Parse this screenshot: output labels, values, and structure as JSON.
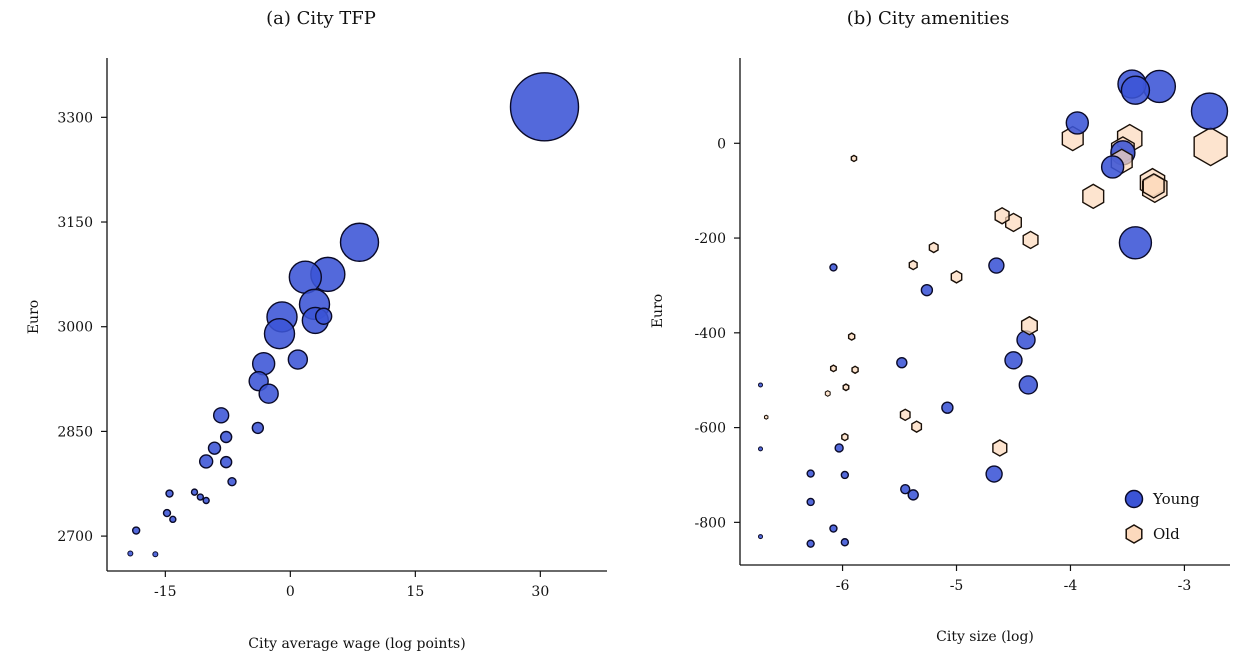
{
  "colors": {
    "young_fill": "#3b54d6",
    "young_stroke": "#0a0a28",
    "old_fill": "#fcd9bd",
    "old_stroke": "#1a1008",
    "axis": "#111111"
  },
  "chart_data": [
    {
      "type": "scatter",
      "title": "(a) City TFP",
      "xlabel": "City average wage (log points)",
      "ylabel": "Euro",
      "xlim": [
        -22,
        38
      ],
      "ylim": [
        2650,
        3385
      ],
      "xticks": [
        -15,
        0,
        15,
        30
      ],
      "xtick_labels": [
        "-15",
        "0",
        "15",
        "30"
      ],
      "yticks": [
        2700,
        2850,
        3000,
        3150,
        3300
      ],
      "ytick_labels": [
        "2700",
        "2850",
        "3000",
        "3150",
        "3300"
      ],
      "grid": false,
      "series": [
        {
          "points": [
            {
              "x": 30.5,
              "y": 3315,
              "size": 34
            },
            {
              "x": 8.3,
              "y": 3121,
              "size": 19
            },
            {
              "x": 4.5,
              "y": 3075,
              "size": 17
            },
            {
              "x": 1.8,
              "y": 3071,
              "size": 16
            },
            {
              "x": -1.0,
              "y": 3014,
              "size": 15
            },
            {
              "x": 2.9,
              "y": 3032,
              "size": 15
            },
            {
              "x": -1.3,
              "y": 2990,
              "size": 15
            },
            {
              "x": 3.0,
              "y": 3009,
              "size": 13
            },
            {
              "x": 4.0,
              "y": 3015,
              "size": 8
            },
            {
              "x": 0.9,
              "y": 2953,
              "size": 9.5
            },
            {
              "x": -3.2,
              "y": 2947,
              "size": 11
            },
            {
              "x": -3.8,
              "y": 2922,
              "size": 9.5
            },
            {
              "x": -2.6,
              "y": 2904,
              "size": 9.5
            },
            {
              "x": -8.3,
              "y": 2873,
              "size": 7.5
            },
            {
              "x": -3.9,
              "y": 2855,
              "size": 5.5
            },
            {
              "x": -7.7,
              "y": 2842,
              "size": 5.5
            },
            {
              "x": -9.1,
              "y": 2826,
              "size": 6
            },
            {
              "x": -10.1,
              "y": 2807,
              "size": 6.5
            },
            {
              "x": -7.7,
              "y": 2806,
              "size": 5.5
            },
            {
              "x": -7.0,
              "y": 2778,
              "size": 4
            },
            {
              "x": -14.5,
              "y": 2761,
              "size": 3.5
            },
            {
              "x": -11.5,
              "y": 2763,
              "size": 3
            },
            {
              "x": -10.8,
              "y": 2756,
              "size": 3
            },
            {
              "x": -10.1,
              "y": 2751,
              "size": 3
            },
            {
              "x": -14.8,
              "y": 2733,
              "size": 3.5
            },
            {
              "x": -14.1,
              "y": 2724,
              "size": 3
            },
            {
              "x": -18.5,
              "y": 2708,
              "size": 3.5
            },
            {
              "x": -19.2,
              "y": 2675,
              "size": 2.5
            },
            {
              "x": -16.2,
              "y": 2674,
              "size": 2.5
            }
          ]
        }
      ]
    },
    {
      "type": "scatter",
      "title": "(b) City amenities",
      "xlabel": "City size (log)",
      "ylabel": "Euro",
      "xlim": [
        -6.9,
        -2.6
      ],
      "ylim": [
        -890,
        180
      ],
      "xticks": [
        -6,
        -5,
        -4,
        -3
      ],
      "xtick_labels": [
        "-6",
        "-5",
        "-4",
        "-3"
      ],
      "yticks": [
        -800,
        -600,
        -400,
        -200,
        0
      ],
      "ytick_labels": [
        "-800",
        "-600",
        "-400",
        "-200",
        "0"
      ],
      "grid": false,
      "legend": "bottom-right",
      "series": [
        {
          "name": "Young",
          "marker": "circle",
          "points": [
            {
              "x": -3.46,
              "y": 125,
              "size": 14
            },
            {
              "x": -3.43,
              "y": 112,
              "size": 14
            },
            {
              "x": -3.22,
              "y": 120,
              "size": 16
            },
            {
              "x": -2.78,
              "y": 68,
              "size": 18
            },
            {
              "x": -3.94,
              "y": 43,
              "size": 11
            },
            {
              "x": -3.54,
              "y": -20,
              "size": 12
            },
            {
              "x": -3.63,
              "y": -50,
              "size": 11
            },
            {
              "x": -3.43,
              "y": -210,
              "size": 16
            },
            {
              "x": -4.65,
              "y": -258,
              "size": 7.5
            },
            {
              "x": -5.26,
              "y": -310,
              "size": 5.5
            },
            {
              "x": -4.39,
              "y": -415,
              "size": 9
            },
            {
              "x": -4.5,
              "y": -458,
              "size": 8.5
            },
            {
              "x": -4.37,
              "y": -510,
              "size": 9
            },
            {
              "x": -5.48,
              "y": -463,
              "size": 5
            },
            {
              "x": -5.08,
              "y": -558,
              "size": 5.5
            },
            {
              "x": -4.67,
              "y": -698,
              "size": 8
            },
            {
              "x": -5.45,
              "y": -730,
              "size": 4.5
            },
            {
              "x": -5.38,
              "y": -742,
              "size": 5
            },
            {
              "x": -6.08,
              "y": -262,
              "size": 3.5
            },
            {
              "x": -6.03,
              "y": -643,
              "size": 4
            },
            {
              "x": -6.28,
              "y": -697,
              "size": 3.5
            },
            {
              "x": -5.98,
              "y": -700,
              "size": 3.5
            },
            {
              "x": -6.28,
              "y": -757,
              "size": 3.5
            },
            {
              "x": -6.08,
              "y": -813,
              "size": 3.5
            },
            {
              "x": -6.28,
              "y": -845,
              "size": 3.5
            },
            {
              "x": -5.98,
              "y": -842,
              "size": 3.5
            },
            {
              "x": -6.72,
              "y": -510,
              "size": 2
            },
            {
              "x": -6.72,
              "y": -645,
              "size": 2
            },
            {
              "x": -6.72,
              "y": -830,
              "size": 2
            }
          ]
        },
        {
          "name": "Old",
          "marker": "hexagon",
          "points": [
            {
              "x": -3.48,
              "y": 10,
              "size": 14
            },
            {
              "x": -3.54,
              "y": -14,
              "size": 13
            },
            {
              "x": -3.55,
              "y": -38,
              "size": 12
            },
            {
              "x": -3.98,
              "y": 10,
              "size": 12
            },
            {
              "x": -2.77,
              "y": -7,
              "size": 19
            },
            {
              "x": -3.28,
              "y": -83,
              "size": 14
            },
            {
              "x": -3.26,
              "y": -95,
              "size": 14
            },
            {
              "x": -3.27,
              "y": -90,
              "size": 12
            },
            {
              "x": -3.8,
              "y": -112,
              "size": 12
            },
            {
              "x": -5.9,
              "y": -32,
              "size": 3
            },
            {
              "x": -4.6,
              "y": -153,
              "size": 8
            },
            {
              "x": -4.5,
              "y": -167,
              "size": 9
            },
            {
              "x": -4.35,
              "y": -204,
              "size": 8.5
            },
            {
              "x": -5.2,
              "y": -220,
              "size": 5
            },
            {
              "x": -5.38,
              "y": -257,
              "size": 4.5
            },
            {
              "x": -5.0,
              "y": -282,
              "size": 6
            },
            {
              "x": -5.92,
              "y": -408,
              "size": 3.5
            },
            {
              "x": -4.36,
              "y": -385,
              "size": 9
            },
            {
              "x": -6.08,
              "y": -475,
              "size": 3.2
            },
            {
              "x": -5.89,
              "y": -478,
              "size": 3.5
            },
            {
              "x": -5.97,
              "y": -515,
              "size": 3.2
            },
            {
              "x": -6.13,
              "y": -528,
              "size": 2.8
            },
            {
              "x": -5.45,
              "y": -573,
              "size": 5.5
            },
            {
              "x": -5.35,
              "y": -598,
              "size": 5.5
            },
            {
              "x": -5.98,
              "y": -620,
              "size": 3.5
            },
            {
              "x": -4.62,
              "y": -643,
              "size": 8
            },
            {
              "x": -6.67,
              "y": -578,
              "size": 2
            }
          ]
        }
      ]
    }
  ]
}
